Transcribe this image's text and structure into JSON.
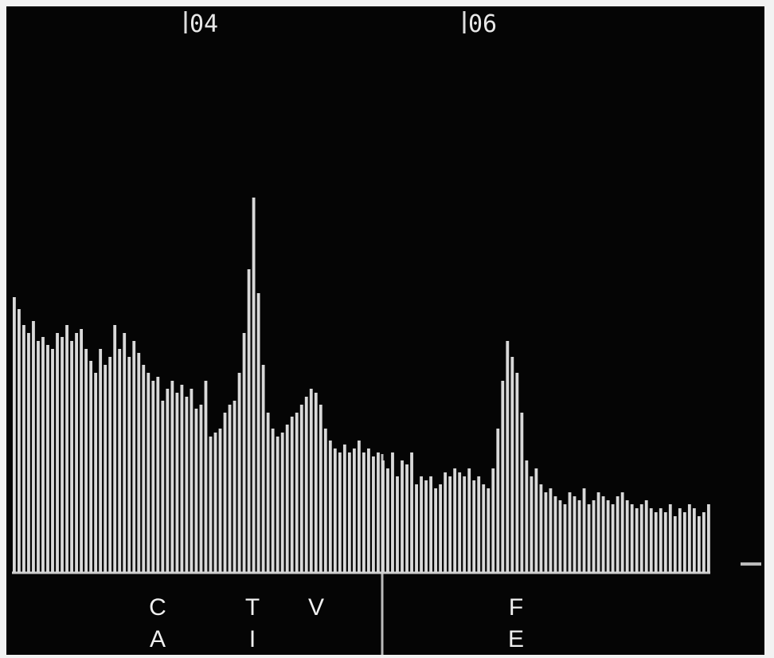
{
  "chart_data": {
    "type": "bar",
    "values": [
      345,
      330,
      310,
      300,
      315,
      290,
      295,
      285,
      280,
      300,
      295,
      310,
      290,
      300,
      305,
      280,
      265,
      250,
      280,
      260,
      270,
      310,
      280,
      300,
      270,
      290,
      275,
      260,
      250,
      240,
      245,
      215,
      230,
      240,
      225,
      235,
      220,
      230,
      205,
      210,
      240,
      170,
      175,
      180,
      200,
      210,
      215,
      250,
      300,
      380,
      470,
      350,
      260,
      200,
      180,
      170,
      175,
      185,
      195,
      200,
      210,
      220,
      230,
      225,
      210,
      180,
      165,
      155,
      150,
      160,
      150,
      155,
      165,
      150,
      155,
      145,
      150,
      140,
      130,
      150,
      120,
      140,
      135,
      150,
      110,
      120,
      115,
      120,
      105,
      110,
      125,
      120,
      130,
      125,
      120,
      130,
      115,
      120,
      110,
      105,
      130,
      180,
      240,
      290,
      270,
      250,
      200,
      140,
      120,
      130,
      110,
      100,
      105,
      95,
      90,
      85,
      100,
      95,
      90,
      105,
      85,
      90,
      100,
      95,
      90,
      85,
      95,
      100,
      90,
      85,
      80,
      85,
      90,
      80,
      75,
      80,
      75,
      85,
      70,
      80,
      75,
      85,
      80,
      70,
      75,
      85
    ],
    "color": "#d9d9d9",
    "ylim": [
      0,
      500
    ],
    "markers": [
      "04",
      "06"
    ],
    "element_labels": [
      [
        "C",
        "A"
      ],
      [
        "T",
        "I"
      ],
      [
        "V"
      ],
      [
        "F",
        "E"
      ]
    ]
  }
}
